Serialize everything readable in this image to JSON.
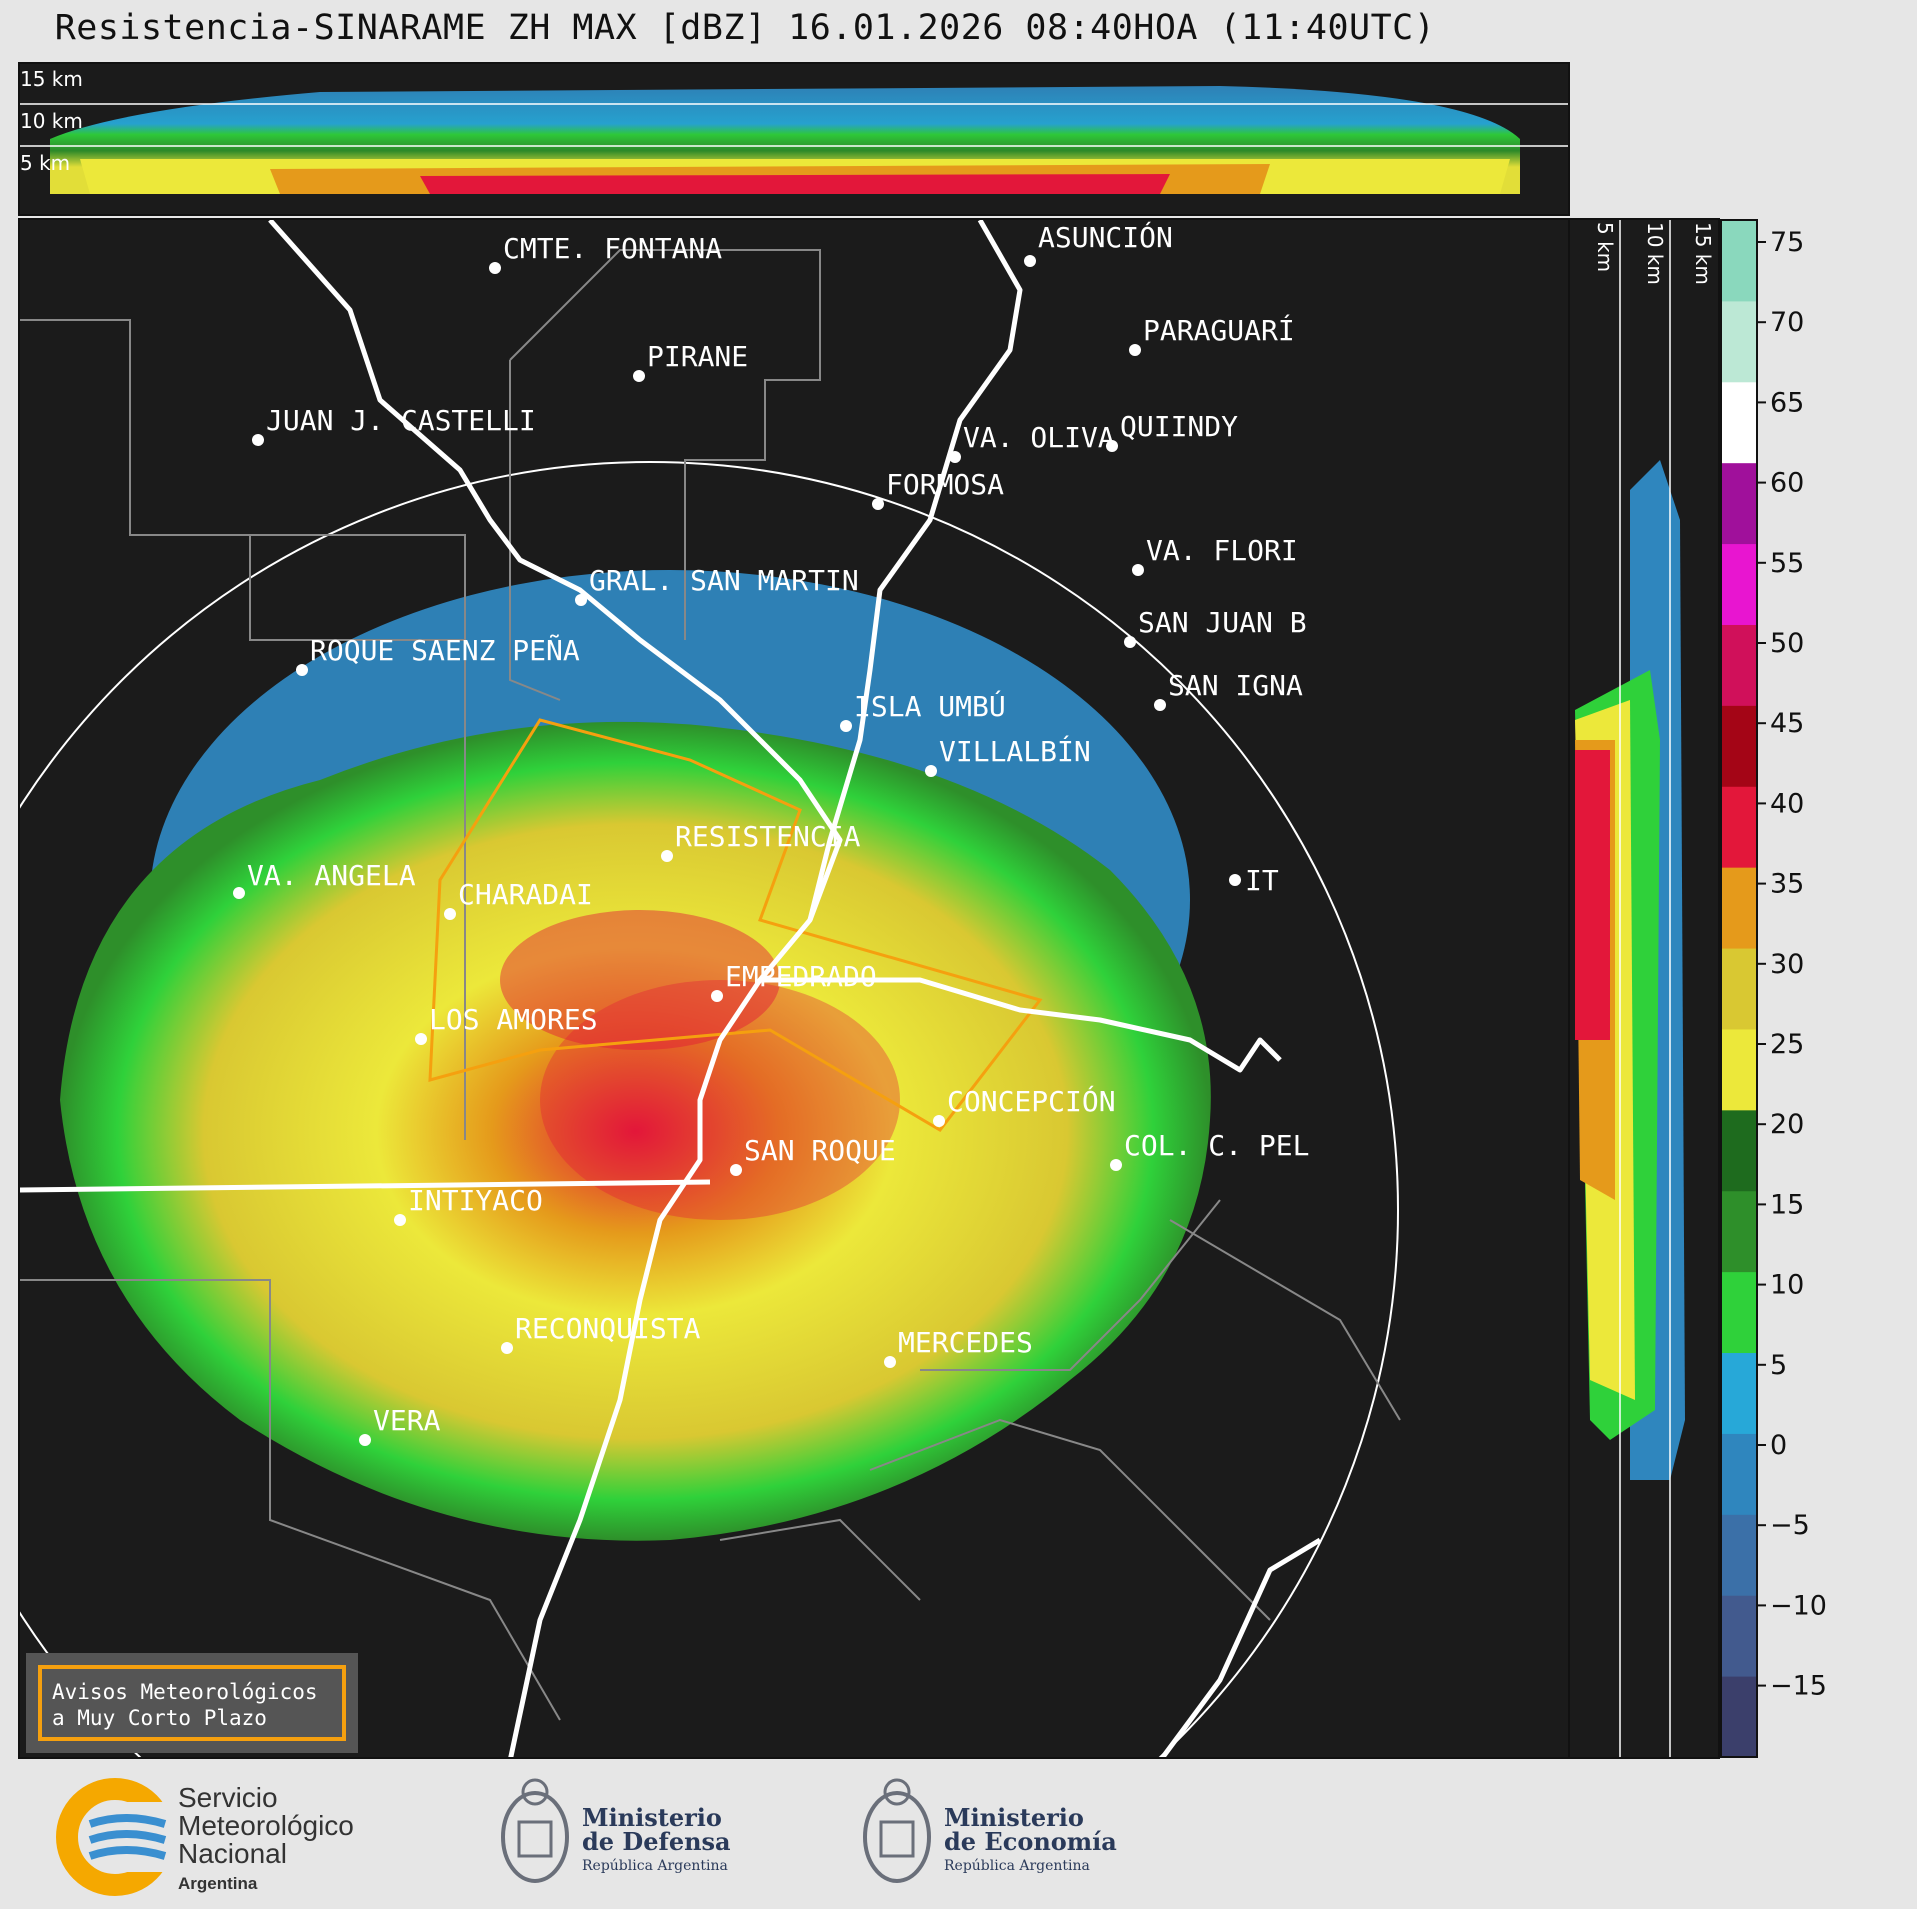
{
  "title": "Resistencia-SINARAME ZH MAX [dBZ] 16.01.2026 08:40HOA (11:40UTC)",
  "top_heights": [
    "15 km",
    "10 km",
    "5 km"
  ],
  "side_heights": [
    "5 km",
    "10 km",
    "15 km"
  ],
  "colorbar": {
    "ticks": [
      "75",
      "70",
      "65",
      "60",
      "55",
      "50",
      "45",
      "40",
      "35",
      "30",
      "25",
      "20",
      "15",
      "10",
      "5",
      "0",
      "−5",
      "−10",
      "−15"
    ],
    "colors": [
      "#3b3f6b",
      "#425a8e",
      "#3b70a8",
      "#2f86be",
      "#27a8d8",
      "#2fd13a",
      "#2e8f2a",
      "#1e6b1e",
      "#ece83a",
      "#d9c832",
      "#e59a1b",
      "#e3173a",
      "#a40516",
      "#d0105a",
      "#e815d0",
      "#a0109b",
      "#ffffff",
      "#bce8d5",
      "#8ad8bd"
    ]
  },
  "places": [
    {
      "name": "CMTE. FONTANA"
    },
    {
      "name": "ASUNCIÓN"
    },
    {
      "name": "PARAGUARÍ"
    },
    {
      "name": "PIRANE"
    },
    {
      "name": "JUAN J. CASTELLI"
    },
    {
      "name": "VA. OLIVA"
    },
    {
      "name": "QUIINDY"
    },
    {
      "name": "FORMOSA"
    },
    {
      "name": "VA. FLORI"
    },
    {
      "name": "GRAL. SAN MARTIN"
    },
    {
      "name": "SAN JUAN B"
    },
    {
      "name": "ROQUE SAENZ PEÑA"
    },
    {
      "name": "SAN IGNA"
    },
    {
      "name": "ISLA UMBÚ"
    },
    {
      "name": "VILLALBÍN"
    },
    {
      "name": "RESISTENCIA"
    },
    {
      "name": "VA. ANGELA"
    },
    {
      "name": "CHARADAI"
    },
    {
      "name": "IT"
    },
    {
      "name": "EMPEDRADO"
    },
    {
      "name": "LOS AMORES"
    },
    {
      "name": "CONCEPCIÓN"
    },
    {
      "name": "SAN ROQUE"
    },
    {
      "name": "COL. C. PEL"
    },
    {
      "name": "INTIYACO"
    },
    {
      "name": "RECONQUISTA"
    },
    {
      "name": "MERCEDES"
    },
    {
      "name": "VERA"
    }
  ],
  "alert": {
    "line1": "Avisos Meteorológicos",
    "line2": "a Muy Corto Plazo"
  },
  "footer": {
    "smn": {
      "line1": "Servicio",
      "line2": "Meteorológico",
      "line3": "Nacional",
      "line4": "Argentina"
    },
    "defensa": {
      "line1": "Ministerio",
      "line2": "de Defensa",
      "line3": "República Argentina"
    },
    "economia": {
      "line1": "Ministerio",
      "line2": "de Economía",
      "line3": "República Argentina"
    }
  }
}
